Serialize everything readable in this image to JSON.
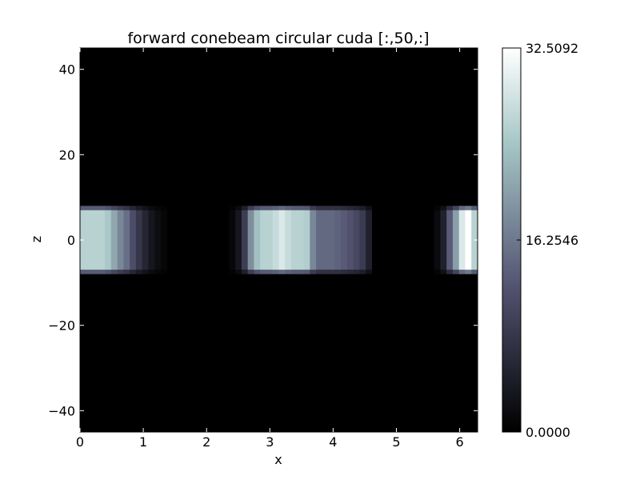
{
  "chart_data": {
    "type": "heatmap",
    "title": "forward conebeam circular cuda [:,50,:]",
    "xlabel": "x",
    "ylabel": "z",
    "xlim": [
      0,
      6.2832
    ],
    "ylim": [
      -45,
      45
    ],
    "x_ticks": [
      0,
      1,
      2,
      3,
      4,
      5,
      6
    ],
    "x_tick_labels": [
      "0",
      "1",
      "2",
      "3",
      "4",
      "5",
      "6"
    ],
    "y_ticks": [
      40,
      20,
      0,
      -20,
      -40
    ],
    "y_tick_labels": [
      "40",
      "20",
      "0",
      "−20",
      "−40"
    ],
    "colormap": "bone",
    "colorbar": {
      "min": 0.0,
      "max": 32.5092,
      "tick_values": [
        32.5092,
        16.2546,
        0.0
      ],
      "tick_labels": [
        "32.5092",
        "16.2546",
        "0.0000"
      ]
    },
    "band": {
      "z_top": 7,
      "z_bottom": -7,
      "edge_rows_value_fraction": 0.5
    },
    "x_columns": 64,
    "intensity_fraction": [
      0.8,
      0.8,
      0.8,
      0.8,
      0.76,
      0.65,
      0.55,
      0.47,
      0.35,
      0.25,
      0.17,
      0.1,
      0.06,
      0.03,
      0.0,
      0.0,
      0.0,
      0.0,
      0.0,
      0.0,
      0.0,
      0.0,
      0.0,
      0.0,
      0.03,
      0.1,
      0.28,
      0.57,
      0.73,
      0.8,
      0.8,
      0.84,
      0.9,
      0.84,
      0.8,
      0.8,
      0.78,
      0.55,
      0.45,
      0.45,
      0.45,
      0.43,
      0.4,
      0.37,
      0.33,
      0.27,
      0.15,
      0.0,
      0.0,
      0.0,
      0.0,
      0.0,
      0.0,
      0.0,
      0.0,
      0.0,
      0.0,
      0.05,
      0.15,
      0.4,
      0.62,
      0.9,
      1.0,
      0.8
    ]
  }
}
